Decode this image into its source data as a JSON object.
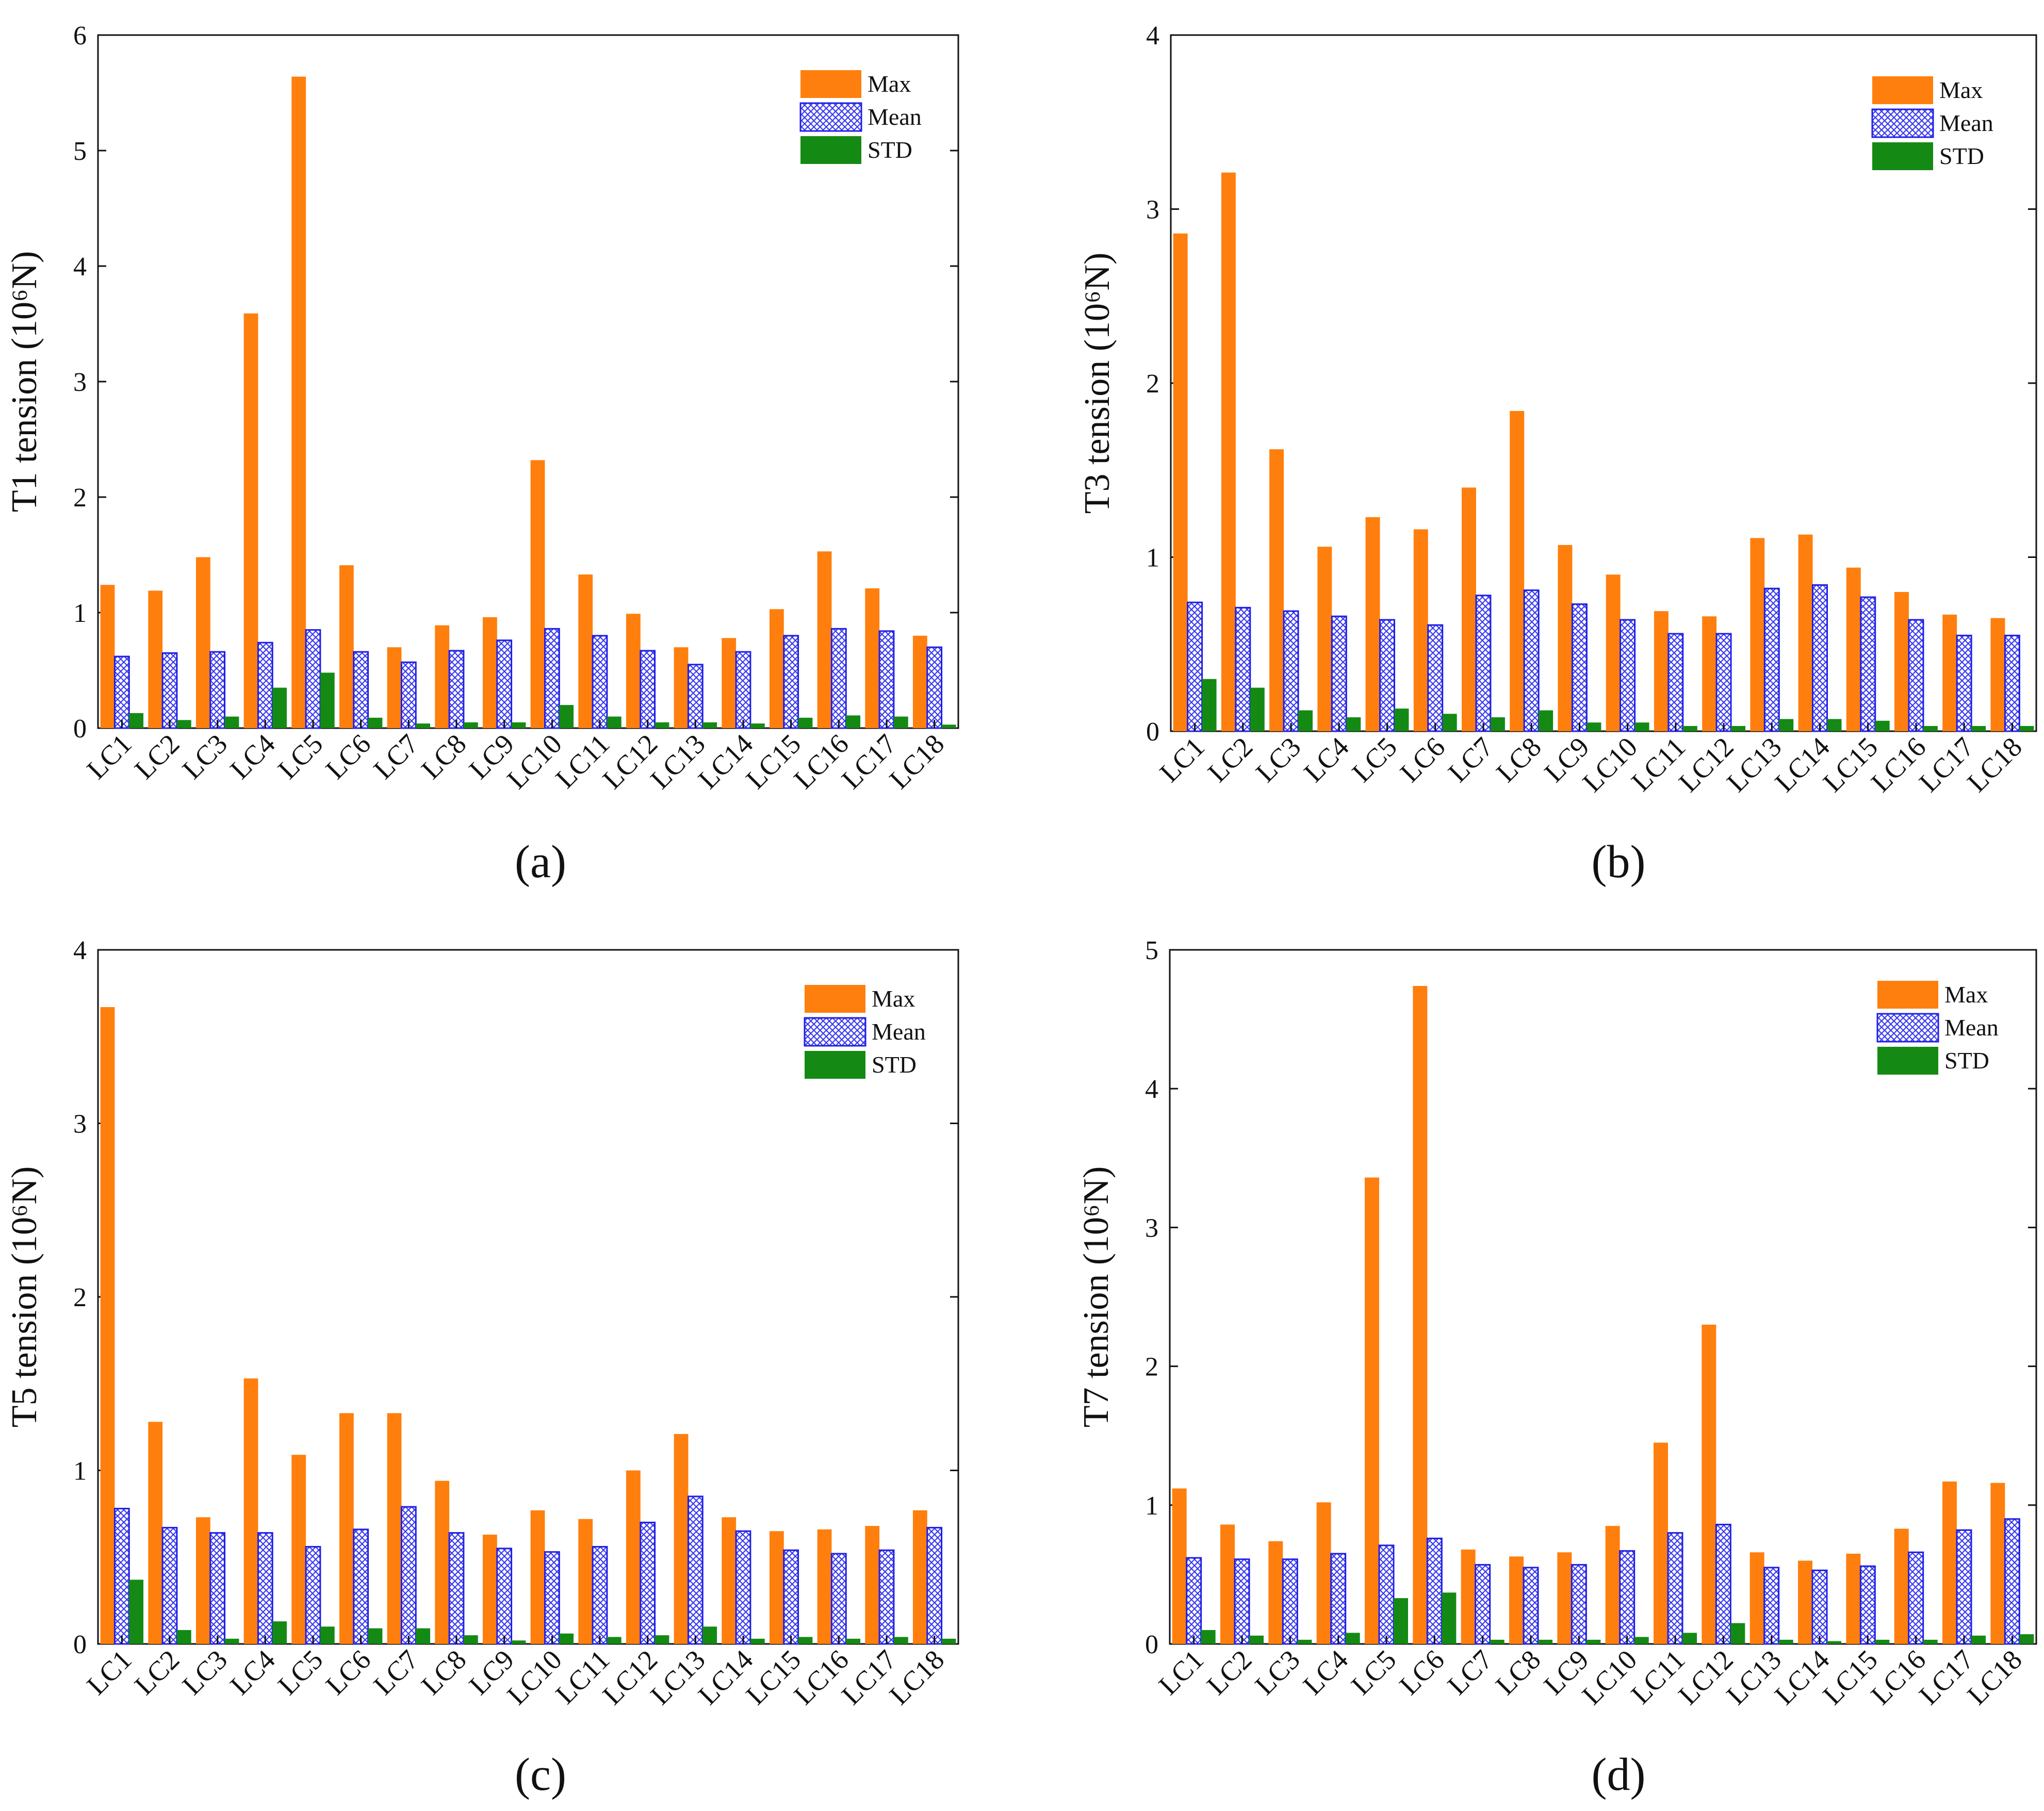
{
  "colors": {
    "max": "#FF7F0E",
    "mean_stroke": "#1F1FE6",
    "mean_hatch": "#3A3AF0",
    "std": "#148A14",
    "axis": "#111111"
  },
  "legend": {
    "max_label": "Max",
    "mean_label": "Mean",
    "std_label": "STD"
  },
  "chart_data": [
    {
      "type": "bar",
      "panel_label": "(a)",
      "ylabel": "T1 tension (10⁶N)",
      "ylim": [
        0,
        6
      ],
      "yticks": [
        "0",
        "1",
        "2",
        "3",
        "4",
        "5",
        "6"
      ],
      "categories": [
        "LC1",
        "LC2",
        "LC3",
        "LC4",
        "LC5",
        "LC6",
        "LC7",
        "LC8",
        "LC9",
        "LC10",
        "LC11",
        "LC12",
        "LC13",
        "LC14",
        "LC15",
        "LC16",
        "LC17",
        "LC18"
      ],
      "series": [
        {
          "name": "Max",
          "values": [
            1.24,
            1.19,
            1.48,
            3.59,
            5.64,
            1.41,
            0.7,
            0.89,
            0.96,
            2.32,
            1.33,
            0.99,
            0.7,
            0.78,
            1.03,
            1.53,
            1.21,
            0.8
          ]
        },
        {
          "name": "Mean",
          "values": [
            0.62,
            0.65,
            0.66,
            0.74,
            0.85,
            0.66,
            0.57,
            0.67,
            0.76,
            0.86,
            0.8,
            0.67,
            0.55,
            0.66,
            0.8,
            0.86,
            0.84,
            0.7
          ]
        },
        {
          "name": "STD",
          "values": [
            0.13,
            0.07,
            0.1,
            0.35,
            0.48,
            0.09,
            0.04,
            0.05,
            0.05,
            0.2,
            0.1,
            0.05,
            0.05,
            0.04,
            0.09,
            0.11,
            0.1,
            0.03
          ]
        }
      ]
    },
    {
      "type": "bar",
      "panel_label": "(b)",
      "ylabel": "T3 tension (10⁶N)",
      "ylim": [
        0,
        4
      ],
      "yticks": [
        "0",
        "1",
        "2",
        "3",
        "4"
      ],
      "categories": [
        "LC1",
        "LC2",
        "LC3",
        "LC4",
        "LC5",
        "LC6",
        "LC7",
        "LC8",
        "LC9",
        "LC10",
        "LC11",
        "LC12",
        "LC13",
        "LC14",
        "LC15",
        "LC16",
        "LC17",
        "LC18"
      ],
      "series": [
        {
          "name": "Max",
          "values": [
            2.86,
            3.21,
            1.62,
            1.06,
            1.23,
            1.16,
            1.4,
            1.84,
            1.07,
            0.9,
            0.69,
            0.66,
            1.11,
            1.13,
            0.94,
            0.8,
            0.67,
            0.65
          ]
        },
        {
          "name": "Mean",
          "values": [
            0.74,
            0.71,
            0.69,
            0.66,
            0.64,
            0.61,
            0.78,
            0.81,
            0.73,
            0.64,
            0.56,
            0.56,
            0.82,
            0.84,
            0.77,
            0.64,
            0.55,
            0.55
          ]
        },
        {
          "name": "STD",
          "values": [
            0.3,
            0.25,
            0.12,
            0.08,
            0.13,
            0.1,
            0.08,
            0.12,
            0.05,
            0.05,
            0.03,
            0.03,
            0.07,
            0.07,
            0.06,
            0.03,
            0.03,
            0.03
          ]
        }
      ]
    },
    {
      "type": "bar",
      "panel_label": "(c)",
      "ylabel": "T5 tension (10⁶N)",
      "ylim": [
        0,
        4
      ],
      "yticks": [
        "0",
        "1",
        "2",
        "3",
        "4"
      ],
      "categories": [
        "LC1",
        "LC2",
        "LC3",
        "LC4",
        "LC5",
        "LC6",
        "LC7",
        "LC8",
        "LC9",
        "LC10",
        "LC11",
        "LC12",
        "LC13",
        "LC14",
        "LC15",
        "LC16",
        "LC17",
        "LC18"
      ],
      "series": [
        {
          "name": "Max",
          "values": [
            3.67,
            1.28,
            0.73,
            1.53,
            1.09,
            1.33,
            1.33,
            0.94,
            0.63,
            0.77,
            0.72,
            1.0,
            1.21,
            0.73,
            0.65,
            0.66,
            0.68,
            0.77
          ]
        },
        {
          "name": "Mean",
          "values": [
            0.78,
            0.67,
            0.64,
            0.64,
            0.56,
            0.66,
            0.79,
            0.64,
            0.55,
            0.53,
            0.56,
            0.7,
            0.85,
            0.65,
            0.54,
            0.52,
            0.54,
            0.67
          ]
        },
        {
          "name": "STD",
          "values": [
            0.37,
            0.08,
            0.03,
            0.13,
            0.1,
            0.09,
            0.09,
            0.05,
            0.02,
            0.06,
            0.04,
            0.05,
            0.1,
            0.03,
            0.04,
            0.03,
            0.04,
            0.03
          ]
        }
      ]
    },
    {
      "type": "bar",
      "panel_label": "(d)",
      "ylabel": "T7 tension (10⁶N)",
      "ylim": [
        0,
        5
      ],
      "yticks": [
        "0",
        "1",
        "2",
        "3",
        "4",
        "5"
      ],
      "categories": [
        "LC1",
        "LC2",
        "LC3",
        "LC4",
        "LC5",
        "LC6",
        "LC7",
        "LC8",
        "LC9",
        "LC10",
        "LC11",
        "LC12",
        "LC13",
        "LC14",
        "LC15",
        "LC16",
        "LC17",
        "LC18"
      ],
      "series": [
        {
          "name": "Max",
          "values": [
            1.12,
            0.86,
            0.74,
            1.02,
            3.36,
            4.74,
            0.68,
            0.63,
            0.66,
            0.85,
            1.45,
            2.3,
            0.66,
            0.6,
            0.65,
            0.83,
            1.17,
            1.16
          ]
        },
        {
          "name": "Mean",
          "values": [
            0.62,
            0.61,
            0.61,
            0.65,
            0.71,
            0.76,
            0.57,
            0.55,
            0.57,
            0.67,
            0.8,
            0.86,
            0.55,
            0.53,
            0.56,
            0.66,
            0.82,
            0.9
          ]
        },
        {
          "name": "STD",
          "values": [
            0.1,
            0.06,
            0.03,
            0.08,
            0.33,
            0.37,
            0.03,
            0.03,
            0.03,
            0.05,
            0.08,
            0.15,
            0.03,
            0.02,
            0.03,
            0.03,
            0.06,
            0.07
          ]
        }
      ]
    }
  ]
}
